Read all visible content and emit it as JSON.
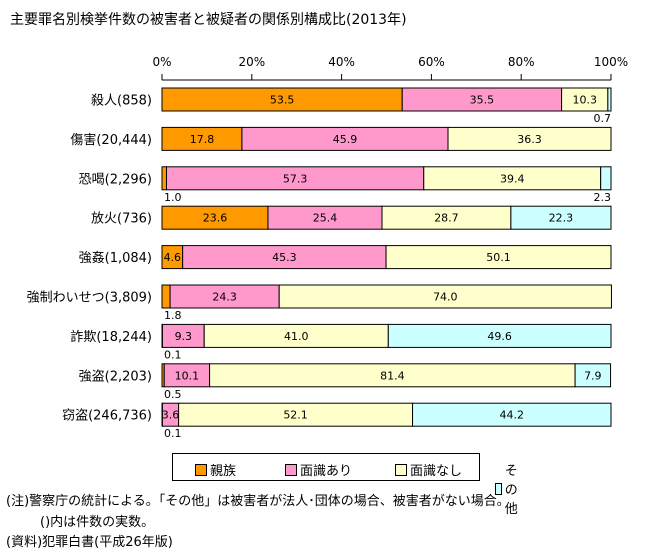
{
  "chart_data": {
    "type": "bar",
    "orientation": "horizontal-stacked-100",
    "title": "主要罪名別検挙件数の被害者と被疑者の関係別構成比(2013年)",
    "xlim": [
      0,
      100
    ],
    "x_ticks": [
      "0%",
      "20%",
      "40%",
      "60%",
      "80%",
      "100%"
    ],
    "categories": [
      "殺人(858)",
      "傷害(20,444)",
      "恐喝(2,296)",
      "放火(736)",
      "強姦(1,084)",
      "強制わいせつ(3,809)",
      "詐欺(18,244)",
      "強盗(2,203)",
      "窃盗(246,736)"
    ],
    "series": [
      {
        "name": "親族",
        "color": "#FF9900",
        "values": [
          53.5,
          17.8,
          1.0,
          23.6,
          4.6,
          1.8,
          0.1,
          0.5,
          0.1
        ]
      },
      {
        "name": "面識あり",
        "color": "#FF99CC",
        "values": [
          35.5,
          45.9,
          57.3,
          25.4,
          45.3,
          24.3,
          9.3,
          10.1,
          3.6
        ]
      },
      {
        "name": "面識なし",
        "color": "#FFFFCC",
        "values": [
          10.3,
          36.3,
          39.4,
          28.7,
          50.1,
          74.0,
          41.0,
          81.4,
          52.1
        ]
      },
      {
        "name": "その他",
        "color": "#CCFFFF",
        "values": [
          0.7,
          0,
          2.3,
          22.3,
          0,
          0,
          49.6,
          7.9,
          44.2
        ]
      }
    ],
    "legend": "bottom"
  },
  "notes": [
    "(注)警察庁の統計による。「その他」は被害者が法人･団体の場合、被害者がない場合。",
    "()内は件数の実数。",
    "(資料)犯罪白書(平成26年版)"
  ]
}
